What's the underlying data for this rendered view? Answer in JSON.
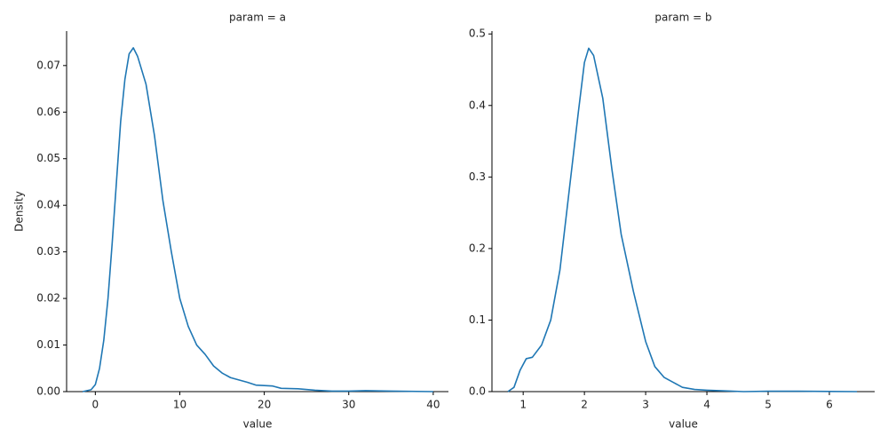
{
  "chart_data": [
    {
      "type": "line",
      "title": "param = a",
      "x_label": "value",
      "y_label": "Density",
      "xlim": [
        -3.4,
        41.8
      ],
      "ylim": [
        0,
        0.0774
      ],
      "xticks": [
        0,
        10,
        20,
        30,
        40
      ],
      "yticks": [
        {
          "value": 0,
          "label": "0.00"
        },
        0.01,
        0.02,
        0.03,
        0.04,
        0.05,
        0.06,
        0.07
      ],
      "series": [
        {
          "color": "#1f77b4",
          "x": [
            -1.5,
            -0.5,
            0,
            0.5,
            1,
            1.5,
            2,
            2.5,
            3,
            3.5,
            4,
            4.5,
            5,
            6,
            7,
            8,
            9,
            10,
            11,
            12,
            13,
            14,
            15,
            16,
            17,
            18,
            19,
            20,
            21,
            22,
            24,
            26,
            28,
            30,
            32,
            35,
            40
          ],
          "values": [
            0,
            0.0004,
            0.0015,
            0.005,
            0.011,
            0.02,
            0.032,
            0.045,
            0.058,
            0.067,
            0.0725,
            0.0738,
            0.072,
            0.066,
            0.055,
            0.041,
            0.03,
            0.02,
            0.014,
            0.01,
            0.008,
            0.0055,
            0.004,
            0.003,
            0.0025,
            0.002,
            0.0014,
            0.0013,
            0.0012,
            0.0007,
            0.0006,
            0.0003,
            0.0001,
            0.0001,
            0.0002,
            0.0001,
            0.0
          ]
        }
      ]
    },
    {
      "type": "line",
      "title": "param = b",
      "x_label": "value",
      "xlim": [
        0.49,
        6.74
      ],
      "ylim": [
        0,
        0.504
      ],
      "xticks": [
        1,
        2,
        3,
        4,
        5,
        6
      ],
      "yticks": [
        {
          "value": 0,
          "label": "0.0"
        },
        0.1,
        0.2,
        0.3,
        0.4,
        0.5
      ],
      "series": [
        {
          "color": "#1f77b4",
          "x": [
            0.75,
            0.85,
            0.95,
            1.05,
            1.15,
            1.3,
            1.45,
            1.6,
            1.75,
            1.9,
            2.0,
            2.07,
            2.15,
            2.3,
            2.45,
            2.6,
            2.8,
            3.0,
            3.15,
            3.3,
            3.45,
            3.6,
            3.8,
            4.0,
            4.3,
            4.6,
            5.0,
            5.5,
            6.0,
            6.45
          ],
          "values": [
            0,
            0.006,
            0.03,
            0.046,
            0.048,
            0.065,
            0.1,
            0.17,
            0.28,
            0.39,
            0.46,
            0.48,
            0.47,
            0.41,
            0.31,
            0.22,
            0.14,
            0.07,
            0.035,
            0.02,
            0.013,
            0.006,
            0.003,
            0.002,
            0.001,
            0.0,
            0.0005,
            0.0005,
            0.0002,
            0
          ]
        }
      ]
    }
  ]
}
